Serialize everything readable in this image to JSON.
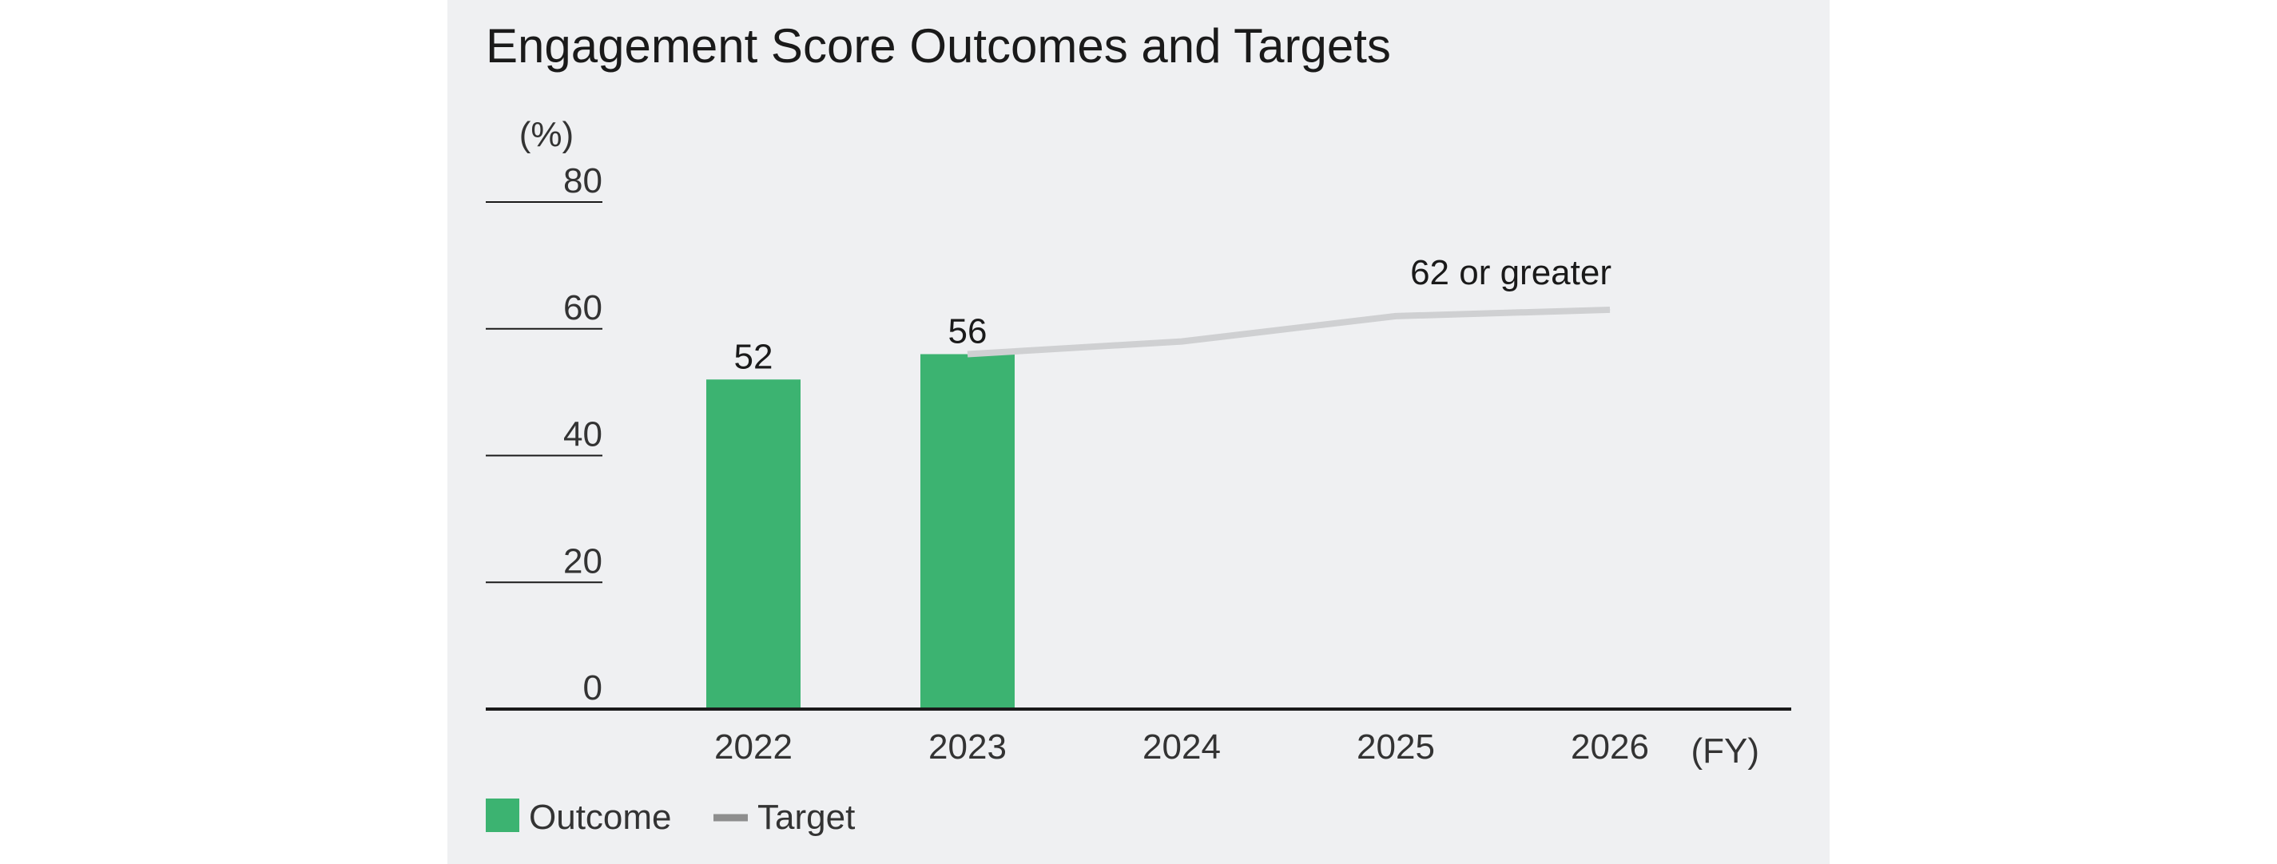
{
  "colors": {
    "outcome": "#3cb371",
    "target": "#cfd0d2",
    "target_legend": "#8e8e8e",
    "panel_bg": "#eff0f2",
    "axis": "#1a1a1a"
  },
  "chart_data": {
    "type": "bar",
    "title": "Engagement Score Outcomes and Targets",
    "ylabel": "(%)",
    "xlabel": "(FY)",
    "categories": [
      "2022",
      "2023",
      "2024",
      "2025",
      "2026"
    ],
    "ylim": [
      0,
      80
    ],
    "yticks": [
      "0",
      "20",
      "40",
      "60",
      "80"
    ],
    "grid": false,
    "legend_position": "bottom-left",
    "series": [
      {
        "name": "Outcome",
        "type": "bar",
        "values": [
          52,
          56,
          null,
          null,
          null
        ],
        "labels": [
          "52",
          "56",
          "",
          "",
          ""
        ]
      },
      {
        "name": "Target",
        "type": "line",
        "values": [
          null,
          56,
          58,
          62,
          63
        ]
      }
    ],
    "annotations": [
      {
        "text": "62 or greater",
        "category": "2026"
      }
    ]
  }
}
